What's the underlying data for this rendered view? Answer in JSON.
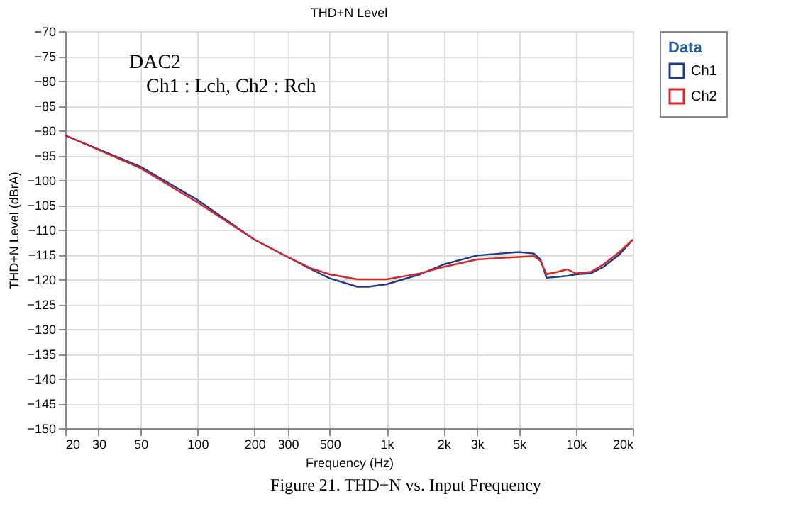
{
  "chart_data": {
    "type": "line",
    "title": "THD+N Level",
    "xlabel": "Frequency (Hz)",
    "ylabel": "THD+N Level (dBrA)",
    "legend_title": "Data",
    "annotations": [
      "DAC2",
      "Ch1 : Lch, Ch2 : Rch",
      "Figure 21. THD+N vs. Input Frequency"
    ],
    "log": "x",
    "grid": true,
    "legend": "top right",
    "marker": "none",
    "line_style": "solid",
    "xlim": [
      20,
      20000
    ],
    "xticks": [
      20,
      30,
      50,
      100,
      200,
      300,
      500,
      {
        "value": 1000,
        "label": "1k"
      },
      {
        "value": 2000,
        "label": "2k"
      },
      {
        "value": 3000,
        "label": "3k"
      },
      {
        "value": 5000,
        "label": "5k"
      },
      {
        "value": 10000,
        "label": "10k"
      },
      {
        "value": 20000,
        "label": "20k"
      }
    ],
    "ylim": [
      -150,
      -70
    ],
    "yticks": [
      -150,
      -145,
      -140,
      -135,
      -130,
      -125,
      -120,
      -115,
      -110,
      -105,
      -100,
      -95,
      -90,
      -85,
      -80,
      -75,
      -70
    ],
    "x": [
      20,
      50,
      100,
      200,
      300,
      400,
      500,
      700,
      800,
      1000,
      1500,
      2000,
      3000,
      4000,
      5000,
      6000,
      6500,
      7000,
      8000,
      9000,
      10000,
      12000,
      14000,
      17000,
      20000
    ],
    "series": [
      {
        "name": "Ch1",
        "color": "#1f3a8a",
        "values": [
          -91,
          -97.3,
          -104,
          -112,
          -115.5,
          -118,
          -119.8,
          -121.5,
          -121.5,
          -121,
          -119,
          -117,
          -115.2,
          -114.8,
          -114.5,
          -114.8,
          -116,
          -119.7,
          -119.5,
          -119.3,
          -119,
          -118.8,
          -117.5,
          -115,
          -112
        ]
      },
      {
        "name": "Ch2",
        "color": "#d62728",
        "values": [
          -91,
          -97.6,
          -104.5,
          -112,
          -115.5,
          -117.8,
          -119,
          -120,
          -120,
          -120,
          -118.8,
          -117.5,
          -116,
          -115.7,
          -115.5,
          -115.3,
          -116.3,
          -119,
          -118.5,
          -118,
          -118.8,
          -118.5,
          -117,
          -114.5,
          -112
        ]
      }
    ]
  }
}
